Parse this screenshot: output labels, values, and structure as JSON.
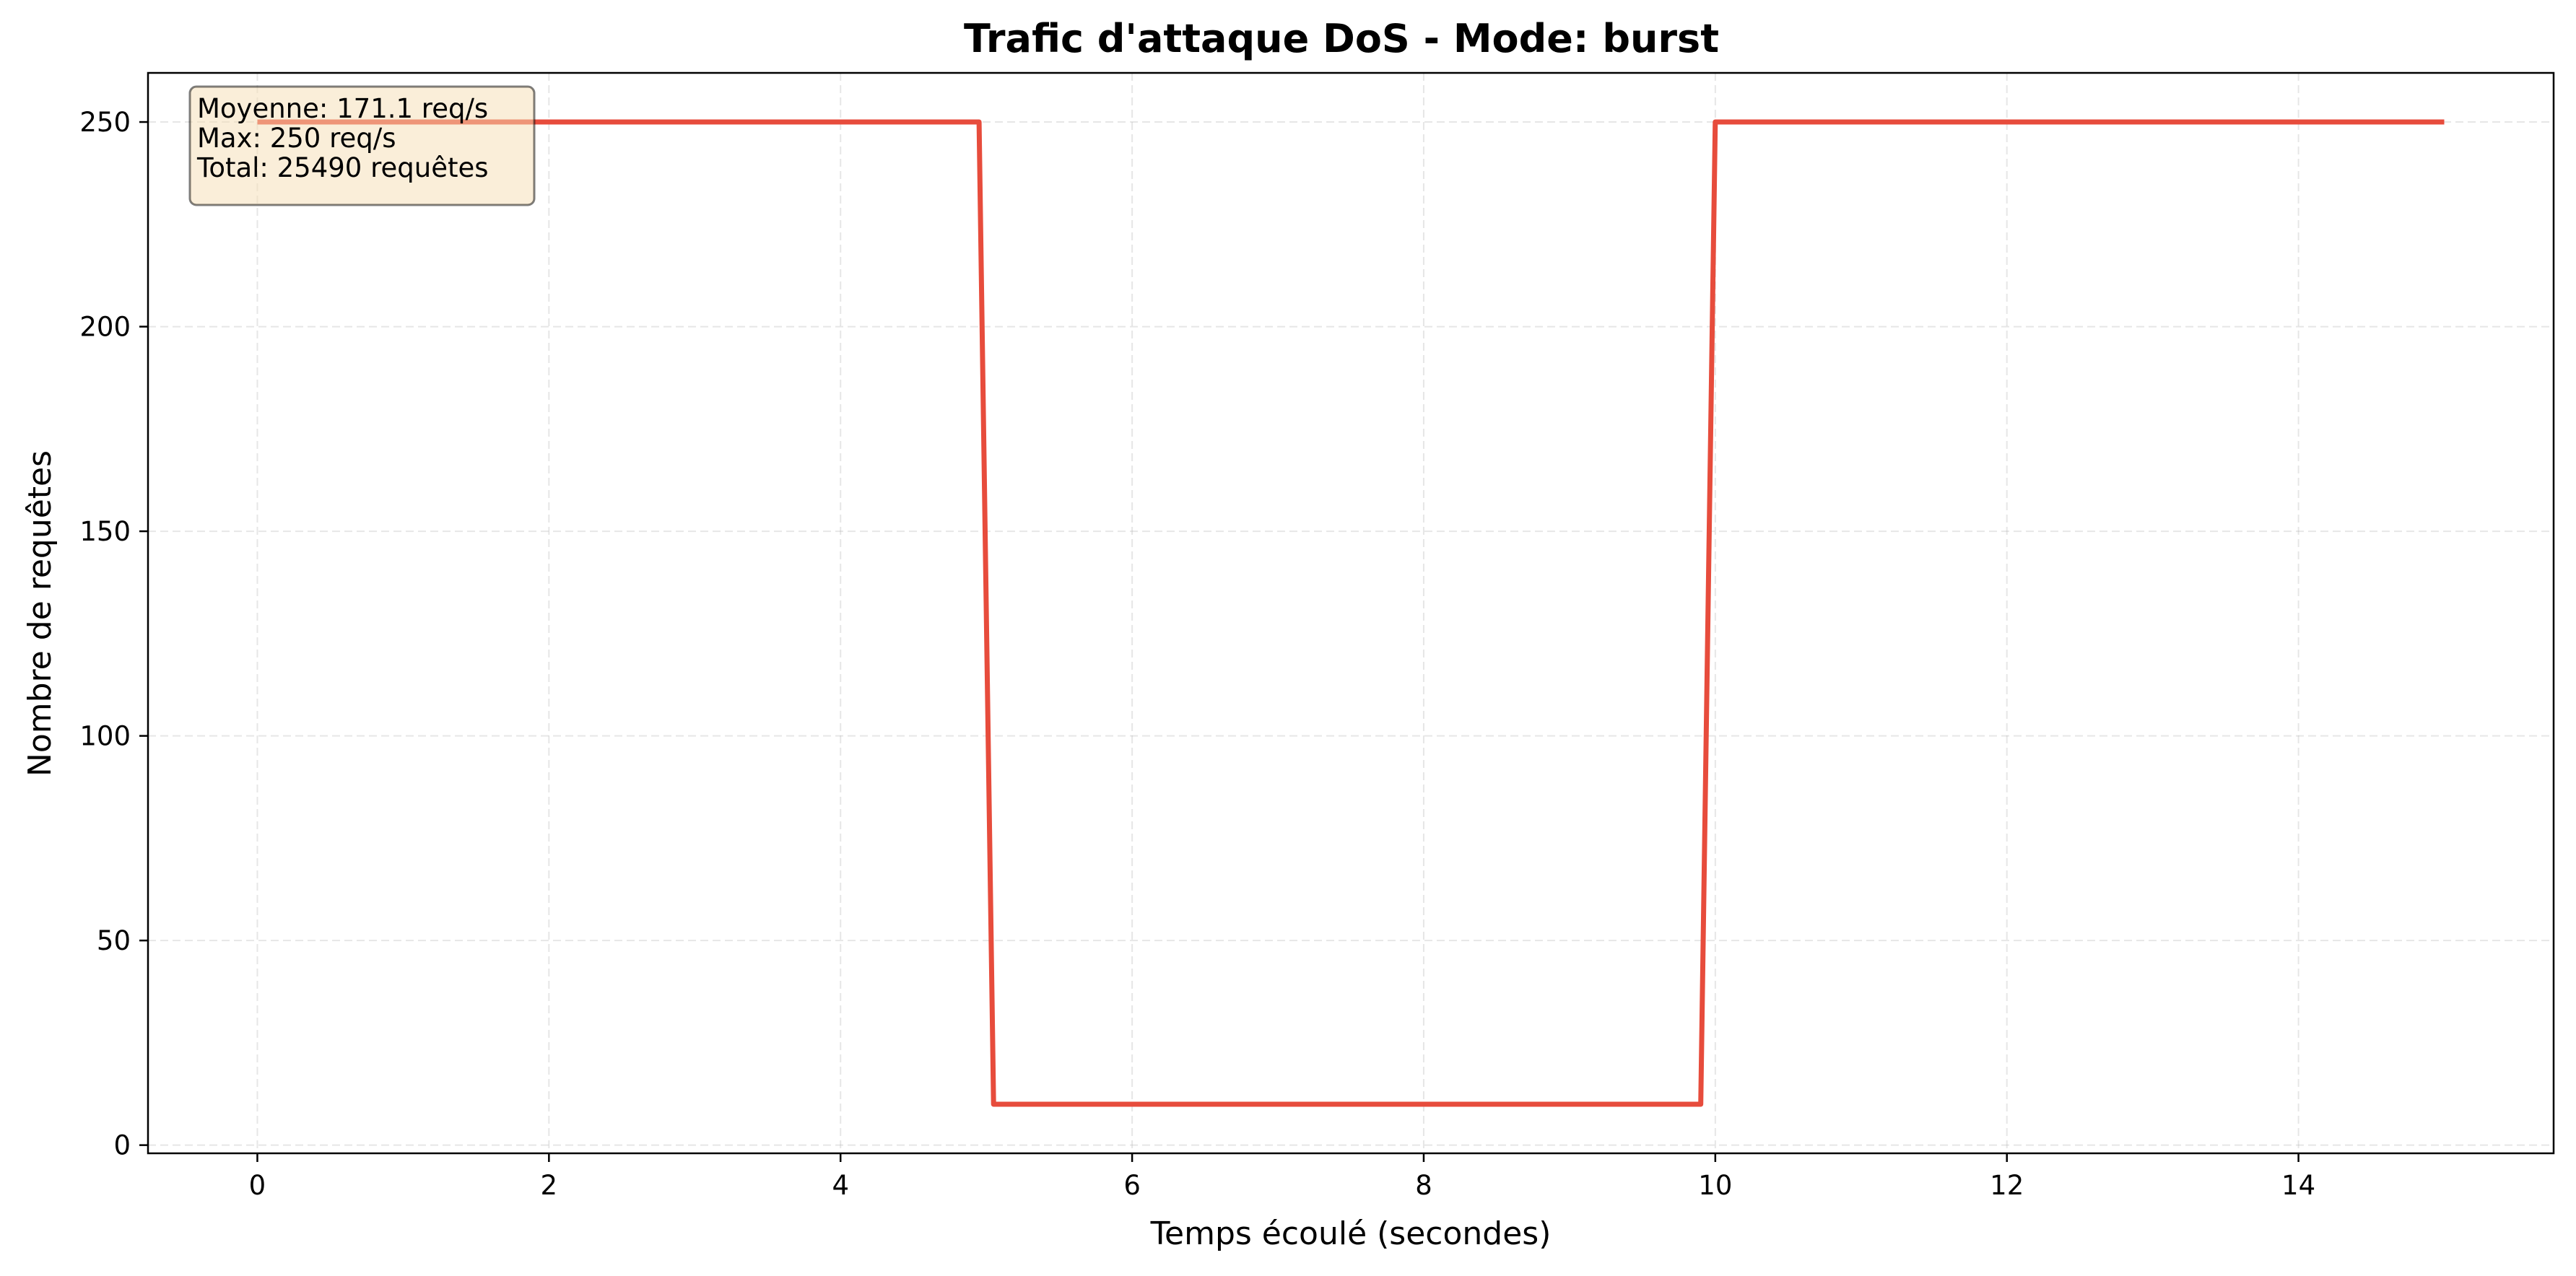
{
  "chart_data": {
    "type": "line",
    "title": "Trafic d'attaque DoS - Mode: burst",
    "xlabel": "Temps écoulé (secondes)",
    "ylabel": "Nombre de requêtes",
    "xlim": [
      -0.75,
      15.75
    ],
    "ylim": [
      -2,
      262
    ],
    "x_ticks": [
      0,
      2,
      4,
      6,
      8,
      10,
      12,
      14
    ],
    "y_ticks": [
      0,
      50,
      100,
      150,
      200,
      250
    ],
    "grid": true,
    "legend": "none",
    "series": [
      {
        "color": "#e74c3c",
        "x": [
          0,
          1,
          2,
          3,
          4,
          4.95,
          5.05,
          6,
          7,
          8,
          9,
          9.9,
          10,
          11,
          12,
          13,
          14,
          15
        ],
        "y": [
          250,
          250,
          250,
          250,
          250,
          250,
          10,
          10,
          10,
          10,
          10,
          10,
          250,
          250,
          250,
          250,
          250,
          250
        ]
      }
    ],
    "annotation": {
      "lines": [
        "Moyenne: 171.1 req/s",
        "Max: 250 req/s",
        "Total: 25490 requêtes"
      ],
      "position": "top-left",
      "box_fill": "#f5deb3",
      "box_edge": "#000000"
    }
  }
}
